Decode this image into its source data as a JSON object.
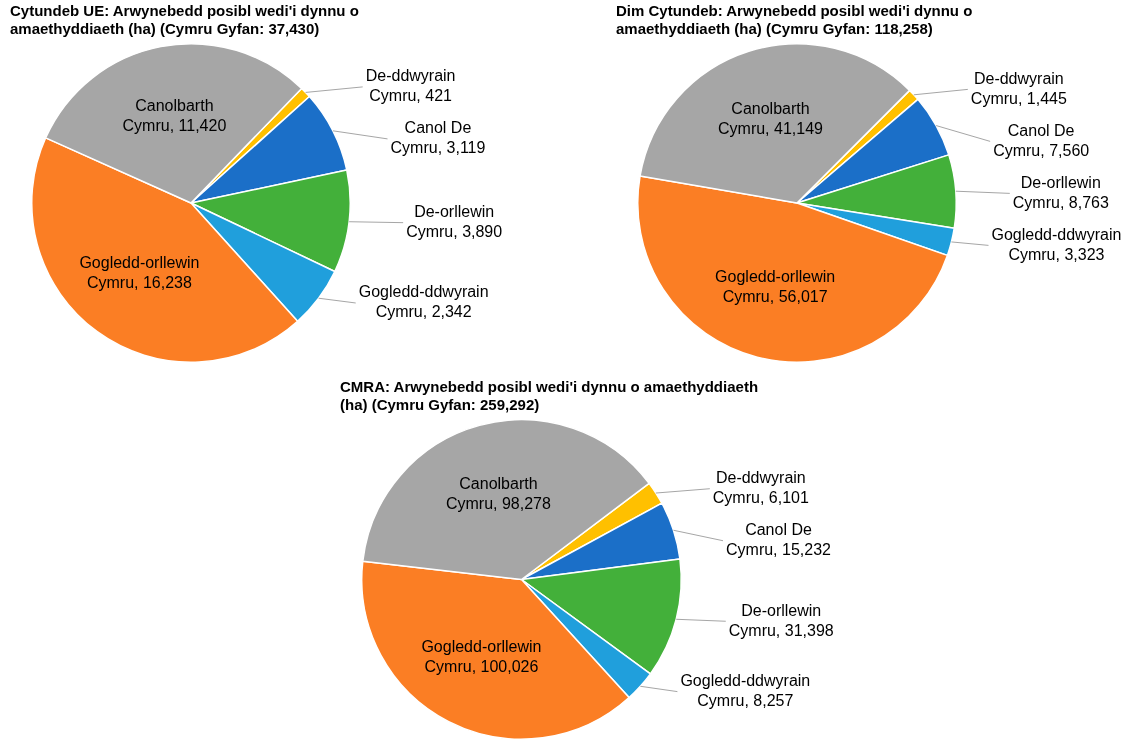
{
  "chart_data": [
    {
      "type": "pie",
      "title": "Cytundeb UE: Arwynebedd posibl wedi'i dynnu o amaethyddiaeth (ha) (Cymru Gyfan: 37,430)",
      "categories": [
        "De-ddwyrain Cymru",
        "Canol De Cymru",
        "De-orllewin Cymru",
        "Gogledd-ddwyrain Cymru",
        "Gogledd-orllewin Cymru",
        "Canolbarth Cymru"
      ],
      "values": [
        421,
        3119,
        3890,
        2342,
        16238,
        11420
      ],
      "value_labels": [
        "421",
        "3,119",
        "3,890",
        "2,342",
        "16,238",
        "11,420"
      ],
      "colors": [
        "#ffc000",
        "#1b6fc8",
        "#43b03a",
        "#209fdc",
        "#fb7e24",
        "#a6a6a6"
      ],
      "legend": false
    },
    {
      "type": "pie",
      "title": "Dim Cytundeb: Arwynebedd posibl wedi'i dynnu o amaethyddiaeth (ha) (Cymru Gyfan: 118,258)",
      "categories": [
        "De-ddwyrain Cymru",
        "Canol De Cymru",
        "De-orllewin Cymru",
        "Gogledd-ddwyrain Cymru",
        "Gogledd-orllewin Cymru",
        "Canolbarth Cymru"
      ],
      "values": [
        1445,
        7560,
        8763,
        3323,
        56017,
        41149
      ],
      "value_labels": [
        "1,445",
        "7,560",
        "8,763",
        "3,323",
        "56,017",
        "41,149"
      ],
      "colors": [
        "#ffc000",
        "#1b6fc8",
        "#43b03a",
        "#209fdc",
        "#fb7e24",
        "#a6a6a6"
      ],
      "legend": false
    },
    {
      "type": "pie",
      "title": "CMRA: Arwynebedd posibl wedi'i dynnu o amaethyddiaeth (ha) (Cymru Gyfan: 259,292)",
      "categories": [
        "De-ddwyrain Cymru",
        "Canol De Cymru",
        "De-orllewin Cymru",
        "Gogledd-ddwyrain Cymru",
        "Gogledd-orllewin Cymru",
        "Canolbarth Cymru"
      ],
      "values": [
        6101,
        15232,
        31398,
        8257,
        100026,
        98278
      ],
      "value_labels": [
        "6,101",
        "15,232",
        "31,398",
        "8,257",
        "100,026",
        "98,278"
      ],
      "colors": [
        "#ffc000",
        "#1b6fc8",
        "#43b03a",
        "#209fdc",
        "#fb7e24",
        "#a6a6a6"
      ],
      "legend": false
    }
  ]
}
